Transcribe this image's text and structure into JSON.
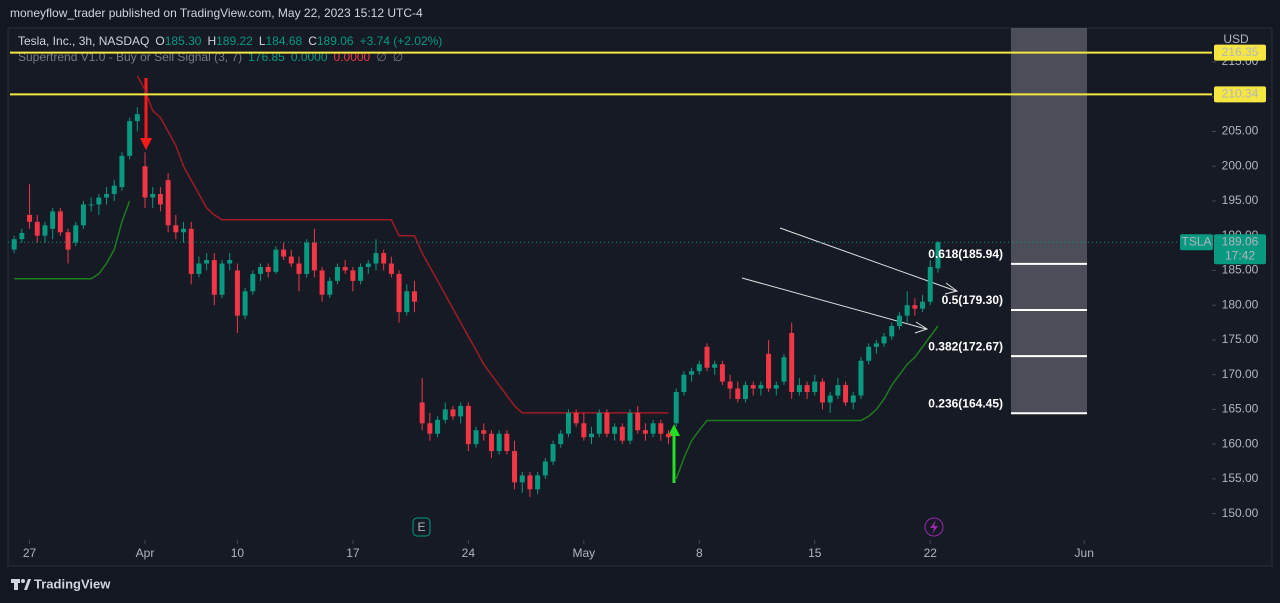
{
  "header": {
    "published": "moneyflow_trader published on TradingView.com, May 22, 2023 15:12 UTC-4"
  },
  "footer": {
    "brand": "TradingView"
  },
  "chart_data": {
    "type": "candlestick",
    "legend": {
      "symbol": "Tesla, Inc., 3h, NASDAQ",
      "items": [
        {
          "label": "O",
          "value": "185.30"
        },
        {
          "label": "H",
          "value": "189.22"
        },
        {
          "label": "L",
          "value": "184.68"
        },
        {
          "label": "C",
          "value": "189.06"
        }
      ],
      "change": "+3.74 (+2.02%)"
    },
    "indicator": {
      "title": "Supertrend V1.0 - Buy or Sell Signal (3, 7)",
      "readouts": [
        "176.85",
        "0.0000",
        "0.0000",
        "∅",
        "∅"
      ],
      "up": {
        "color": "#1e7b1e",
        "values": [
          183.8,
          183.8,
          183.8,
          183.8,
          183.8,
          183.8,
          183.8,
          183.8,
          183.8,
          183.8,
          183.8,
          184.5,
          186,
          188,
          192,
          195,
          null,
          null,
          null,
          null,
          null,
          null,
          null,
          null,
          null,
          null,
          null,
          null,
          null,
          null,
          null,
          null,
          null,
          null,
          null,
          null,
          null,
          null,
          null,
          null,
          null,
          null,
          null,
          null,
          null,
          null,
          null,
          null,
          null,
          null,
          null,
          null,
          null,
          null,
          null,
          null,
          null,
          null,
          null,
          null,
          null,
          null,
          null,
          null,
          null,
          null,
          null,
          null,
          null,
          null,
          null,
          null,
          null,
          null,
          null,
          null,
          null,
          null,
          null,
          null,
          null,
          null,
          null,
          null,
          null,
          null,
          155,
          158,
          160.5,
          162,
          163.4,
          163.4,
          163.4,
          163.4,
          163.4,
          163.4,
          163.4,
          163.4,
          163.4,
          163.4,
          163.4,
          163.4,
          163.4,
          163.4,
          163.4,
          163.4,
          163.4,
          163.4,
          163.4,
          163.4,
          163.4,
          164,
          165,
          166.5,
          168.5,
          170,
          171.5,
          172.5,
          174,
          175.5,
          177
        ]
      },
      "down": {
        "color": "#a11b24",
        "values": [
          null,
          null,
          null,
          null,
          null,
          null,
          null,
          null,
          null,
          null,
          null,
          null,
          null,
          null,
          null,
          null,
          213,
          211,
          208,
          207,
          205,
          203,
          200,
          198,
          196,
          194,
          193,
          192.3,
          192.3,
          192.3,
          192.3,
          192.3,
          192.3,
          192.3,
          192.3,
          192.3,
          192.3,
          192.3,
          192.3,
          192.3,
          192.3,
          192.3,
          192.3,
          192.3,
          192.3,
          192.3,
          192.3,
          192.3,
          192.3,
          192.3,
          190,
          190,
          190,
          187.5,
          185.5,
          183.5,
          181.5,
          179.5,
          177.5,
          175.5,
          173.5,
          171.5,
          170,
          168.5,
          167,
          165.5,
          164.5,
          164.5,
          164.5,
          164.5,
          164.5,
          164.5,
          164.5,
          164.5,
          164.5,
          164.5,
          164.5,
          164.5,
          164.5,
          164.5,
          164.5,
          164.5,
          164.5,
          164.5,
          164.5,
          164.5,
          null,
          null,
          null,
          null,
          null,
          null,
          null,
          null,
          null,
          null,
          null,
          null,
          null,
          null,
          null,
          null,
          null,
          null,
          null,
          null,
          null,
          null,
          null,
          null,
          null,
          null,
          null,
          null,
          null,
          null,
          null,
          null,
          null,
          null,
          null
        ]
      }
    },
    "up_color": "#089981",
    "down_color": "#f23645",
    "open": [
      188,
      189.5,
      193,
      192,
      190,
      191,
      193.5,
      190.5,
      189,
      191.5,
      194.5,
      194.5,
      195.5,
      196,
      197,
      201.5,
      206.5,
      200,
      195.5,
      196,
      198,
      191.5,
      190.5,
      191,
      184.5,
      186,
      186.5,
      181.5,
      186,
      185,
      178.5,
      182,
      184.5,
      185.5,
      184.8,
      188,
      187,
      186,
      184.5,
      189,
      185,
      181.5,
      183.5,
      185.5,
      185,
      183.5,
      185.5,
      186,
      187.5,
      186,
      184.5,
      179,
      182,
      166,
      163,
      161.5,
      163.5,
      165,
      164,
      165.5,
      160,
      162,
      161.5,
      159,
      161.5,
      159,
      154.5,
      155.5,
      153.5,
      155.5,
      157.5,
      160,
      161.5,
      164.5,
      163,
      161,
      161.5,
      164.5,
      161.5,
      162.5,
      160.5,
      164.5,
      162,
      161.5,
      163,
      161.5,
      163,
      167.5,
      170,
      170.5,
      174,
      171,
      171.5,
      169,
      168,
      166.5,
      168.5,
      168,
      173,
      168,
      169,
      176,
      167.5,
      168.5,
      167.5,
      169,
      166,
      167,
      168.5,
      166,
      167,
      172,
      174,
      174.5,
      175.5,
      177,
      178.5,
      180,
      179.5,
      180.5,
      185.3
    ],
    "high": [
      190,
      191,
      197.4,
      193,
      192,
      194,
      194,
      191,
      192,
      195,
      195.5,
      196,
      197,
      198,
      202,
      207,
      208.5,
      202,
      197,
      197,
      199,
      193,
      192,
      192,
      187,
      187.5,
      187.5,
      186.5,
      187.5,
      186,
      182.5,
      185,
      186,
      186,
      188.5,
      189,
      188,
      187,
      189.5,
      191,
      185.5,
      184,
      186,
      186.5,
      185.5,
      186,
      186.5,
      189.5,
      188,
      187,
      185,
      183,
      183.5,
      169.5,
      164.5,
      164,
      166,
      165.5,
      166,
      166,
      162.5,
      163,
      162,
      162,
      162,
      160.5,
      156,
      156,
      156,
      158,
      160.5,
      162,
      165,
      165,
      164.5,
      162.5,
      165,
      165,
      163,
      163,
      165,
      165.5,
      163,
      163.5,
      163.5,
      162,
      168,
      170.5,
      171,
      172,
      174.5,
      172,
      172,
      170,
      169,
      169,
      169,
      169,
      175,
      169,
      173,
      177.5,
      169.5,
      169,
      170,
      169.5,
      167.5,
      169.5,
      169,
      167.5,
      172.5,
      174.5,
      175,
      176,
      177.5,
      179,
      182,
      181,
      181.5,
      186.5,
      189.22
    ],
    "low": [
      187.5,
      189,
      191,
      189,
      189,
      189.5,
      190,
      186,
      188.5,
      191,
      193.5,
      193,
      194.5,
      195,
      196.5,
      201,
      205,
      194,
      194,
      193.5,
      190.5,
      189.5,
      189,
      183,
      184,
      185,
      180,
      181,
      185,
      176,
      178,
      181.5,
      183.5,
      184,
      184.5,
      186.5,
      185.5,
      182,
      184,
      184,
      180.5,
      181,
      183,
      184.5,
      182,
      183,
      184.5,
      185,
      185,
      184,
      177.5,
      178.5,
      179,
      162,
      160.5,
      161,
      163,
      163.5,
      163,
      159,
      159.5,
      160.5,
      158,
      158.5,
      158.5,
      153.5,
      153,
      152.4,
      152.8,
      155,
      157,
      159.5,
      161,
      162.5,
      160.5,
      160,
      161,
      161,
      160.5,
      160,
      160,
      161.5,
      160.5,
      161,
      160.5,
      160,
      162.5,
      167,
      169,
      170,
      170.5,
      170,
      168.5,
      166.5,
      166,
      166,
      167,
      167,
      167.5,
      167,
      168.5,
      166.5,
      167,
      166.5,
      167,
      165,
      164.5,
      166.5,
      165.5,
      165,
      166.5,
      171.5,
      173,
      174,
      175,
      176.5,
      177.5,
      178.5,
      179,
      180,
      184.68
    ],
    "close": [
      189.5,
      190.4,
      192,
      190,
      191.5,
      193.5,
      190.5,
      188,
      191.5,
      194.5,
      194.5,
      195.5,
      196,
      197.2,
      201.5,
      206.5,
      207.5,
      195.5,
      196,
      194.5,
      191.5,
      190.5,
      191,
      184.5,
      186,
      186.5,
      181.5,
      186,
      186.5,
      178.5,
      182,
      184.5,
      185.5,
      184.8,
      188,
      187,
      186,
      184.5,
      189,
      185,
      181.5,
      183.5,
      185.5,
      185,
      183.5,
      185.5,
      186,
      187.5,
      186,
      184.5,
      179,
      182,
      180.5,
      163,
      161.5,
      163.5,
      165,
      164,
      165.5,
      160,
      162,
      161.5,
      159,
      161.5,
      159,
      154.5,
      155.5,
      153.5,
      155.5,
      157.5,
      160,
      161.5,
      164.5,
      163,
      161,
      161.5,
      164.5,
      161.5,
      162.5,
      160.5,
      164.5,
      162,
      161.5,
      163,
      161.5,
      161,
      167.5,
      170,
      170.5,
      171.5,
      171,
      171.5,
      169,
      168,
      166.5,
      168.5,
      168,
      168.5,
      168,
      168.5,
      172.5,
      167.5,
      168.5,
      167.5,
      169,
      166,
      167,
      168.5,
      166,
      167,
      172,
      174,
      174.5,
      175.5,
      177,
      178.5,
      180,
      179.5,
      180.5,
      185.5,
      189.06
    ],
    "xlim": [
      -0.8,
      155.6
    ],
    "xticks": [
      {
        "value": 2,
        "label": "27"
      },
      {
        "value": 17,
        "label": "Apr"
      },
      {
        "value": 29,
        "label": "10"
      },
      {
        "value": 44,
        "label": "17"
      },
      {
        "value": 59,
        "label": "24"
      },
      {
        "value": 74,
        "label": "May"
      },
      {
        "value": 89,
        "label": "8"
      },
      {
        "value": 104,
        "label": "15"
      },
      {
        "value": 119,
        "label": "22"
      },
      {
        "value": 139,
        "label": "Jun"
      }
    ],
    "ylim": [
      146.2,
      219.9
    ],
    "yticks": [
      {
        "value": 150,
        "label": "150.00"
      },
      {
        "value": 155,
        "label": "155.00"
      },
      {
        "value": 160,
        "label": "160.00"
      },
      {
        "value": 165,
        "label": "165.00"
      },
      {
        "value": 170,
        "label": "170.00"
      },
      {
        "value": 175,
        "label": "175.00"
      },
      {
        "value": 180,
        "label": "180.00"
      },
      {
        "value": 185,
        "label": "185.00"
      },
      {
        "value": 190,
        "label": "190.00"
      },
      {
        "value": 195,
        "label": "195.00"
      },
      {
        "value": 200,
        "label": "200.00"
      },
      {
        "value": 205,
        "label": "205.00"
      },
      {
        "value": 210,
        "label": "210.00"
      },
      {
        "value": 215,
        "label": "215.00"
      }
    ],
    "grid": false,
    "currency": "USD",
    "levels": [
      {
        "value": 216.35,
        "label": "216.35"
      },
      {
        "value": 210.34,
        "label": "210.34"
      }
    ],
    "level_color": "#f5e642",
    "fib_levels": [
      {
        "value": 185.94,
        "label": "0.618(185.94)"
      },
      {
        "value": 179.3,
        "label": "0.5(179.30)"
      },
      {
        "value": 172.67,
        "label": "0.382(172.67)"
      },
      {
        "value": 164.45,
        "label": "0.236(164.45)"
      }
    ],
    "last": {
      "symbol": "TSLA",
      "value": 189.06,
      "label": "189.06",
      "countdown": "17:42"
    },
    "events": [
      "E"
    ]
  }
}
